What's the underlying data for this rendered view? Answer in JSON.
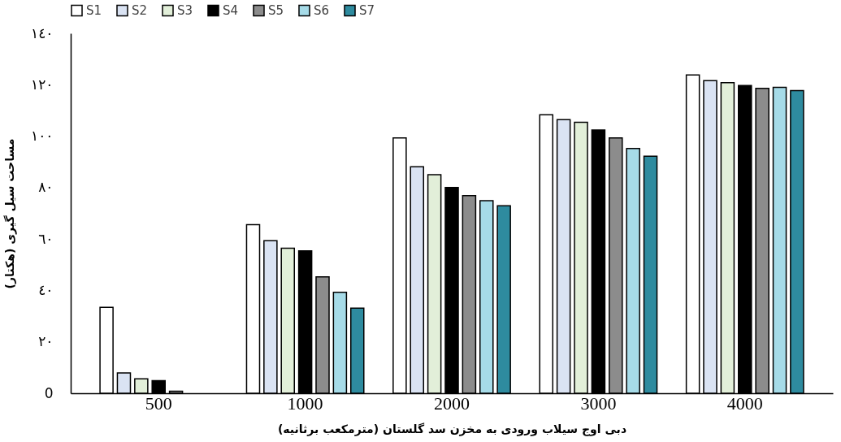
{
  "chart_data": {
    "type": "bar",
    "xlabel": "دبی اوج سیلاب ورودی به مخزن سد گلستان (مترمکعب برثانیه)",
    "ylabel": "مساحت سیل گیری (هکتار)",
    "categories": [
      "500",
      "1000",
      "2000",
      "3000",
      "4000"
    ],
    "series": [
      {
        "name": "S1",
        "color": "#ffffff",
        "values": [
          33.4,
          65.6,
          99.3,
          108.3,
          123.8
        ]
      },
      {
        "name": "S2",
        "color": "#dae3f3",
        "values": [
          7.9,
          59.3,
          88.1,
          106.4,
          121.6
        ]
      },
      {
        "name": "S3",
        "color": "#e2efd9",
        "values": [
          5.6,
          56.4,
          85.0,
          105.4,
          120.8
        ]
      },
      {
        "name": "S4",
        "color": "#000000",
        "values": [
          4.9,
          55.4,
          80.0,
          102.4,
          119.7
        ]
      },
      {
        "name": "S5",
        "color": "#8c8c8c",
        "values": [
          0.8,
          45.3,
          76.9,
          99.3,
          118.6
        ]
      },
      {
        "name": "S6",
        "color": "#a6dbe8",
        "values": [
          null,
          39.3,
          74.9,
          95.2,
          119.0
        ]
      },
      {
        "name": "S7",
        "color": "#2e8b9f",
        "values": [
          null,
          33.1,
          72.9,
          92.2,
          117.7
        ]
      }
    ],
    "ylim": [
      0,
      140
    ],
    "yticks": [
      0,
      {
        "value": 20,
        "label": "٢٠"
      },
      {
        "value": 40,
        "label": "٤٠"
      },
      {
        "value": 60,
        "label": "٦٠"
      },
      {
        "value": 80,
        "label": "٨٠"
      },
      {
        "value": 100,
        "label": "١٠٠"
      },
      {
        "value": 120,
        "label": "١٢٠"
      },
      {
        "value": 140,
        "label": "١٤٠"
      }
    ],
    "grid": false,
    "legend": "top"
  }
}
